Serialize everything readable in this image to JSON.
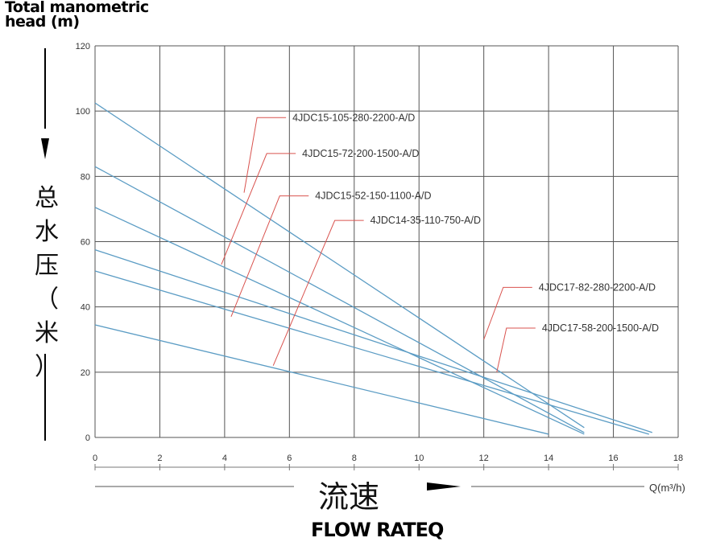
{
  "heading": {
    "line1": "Total manometric",
    "line2": "head (m)"
  },
  "ylabel_cn": [
    "总",
    "水",
    "压",
    "（",
    "米",
    "）"
  ],
  "xlabel_cn": "流速",
  "xlabel_en": "FLOW RATEQ",
  "xunit": "Q(m³/h)",
  "colors": {
    "curve": "#5b9cc4",
    "leader": "#d9534f",
    "grid": "#555555",
    "text": "#333333"
  },
  "chart_data": {
    "type": "line",
    "xlim": [
      0,
      18
    ],
    "ylim": [
      0,
      120
    ],
    "xticks": [
      "0",
      "2",
      "4",
      "6",
      "8",
      "10",
      "12",
      "14",
      "16",
      "18"
    ],
    "yticks": [
      "0",
      "20",
      "40",
      "60",
      "80",
      "100",
      "120"
    ],
    "grid": true,
    "series": [
      {
        "name": "4JDC15-105-280-2200-A/D",
        "x": [
          0,
          15.1
        ],
        "y": [
          102.5,
          3
        ],
        "label_at": [
          5,
          98
        ],
        "leader_from": [
          4.6,
          75
        ]
      },
      {
        "name": "4JDC15-72-200-1500-A/D",
        "x": [
          0,
          15.1
        ],
        "y": [
          83,
          1.5
        ],
        "label_at": [
          5.3,
          87
        ],
        "leader_from": [
          3.9,
          53
        ]
      },
      {
        "name": "4JDC15-52-150-1100-A/D",
        "x": [
          0,
          15.1
        ],
        "y": [
          70.5,
          1
        ],
        "label_at": [
          5.7,
          74
        ],
        "leader_from": [
          4.2,
          37
        ]
      },
      {
        "name": "4JDC14-35-110-750-A/D",
        "x": [
          0,
          14
        ],
        "y": [
          34.5,
          1
        ],
        "label_at": [
          7.4,
          66.5
        ],
        "leader_from": [
          5.5,
          22
        ]
      },
      {
        "name": "4JDC17-82-280-2200-A/D",
        "x": [
          0,
          17.2
        ],
        "y": [
          57.5,
          1.5
        ],
        "label_at": [
          12.6,
          46
        ],
        "leader_from": [
          12,
          30
        ]
      },
      {
        "name": "4JDC17-58-200-1500-A/D",
        "x": [
          0,
          17.1
        ],
        "y": [
          51,
          1
        ],
        "label_at": [
          12.7,
          33.5
        ],
        "leader_from": [
          12.4,
          20
        ]
      }
    ]
  }
}
